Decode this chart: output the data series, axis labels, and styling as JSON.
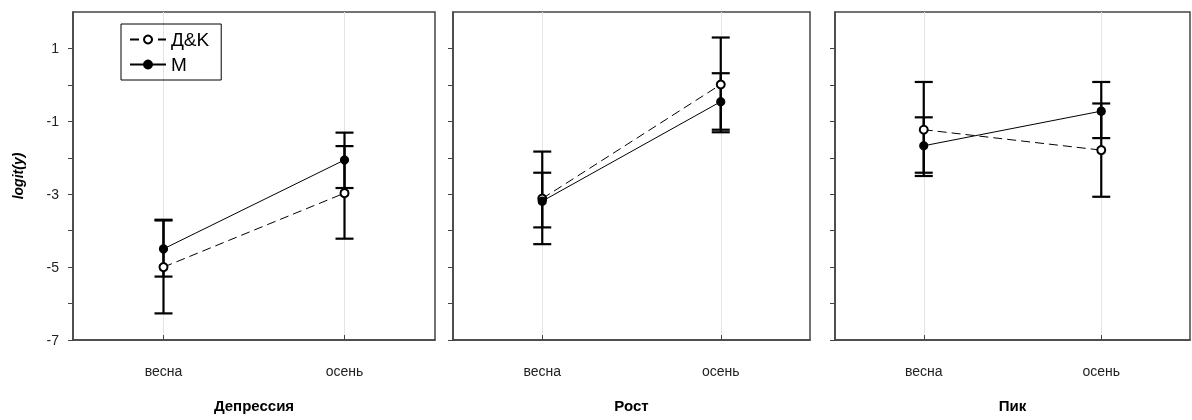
{
  "chart_data": [
    {
      "type": "line",
      "xlabel": "Депрессия",
      "ylabel": "logit(y)",
      "categories": [
        "весна",
        "осень"
      ],
      "ylim": [
        -7,
        2
      ],
      "yticks": [
        -7,
        {
          "value": -6,
          "label": null
        },
        -5,
        {
          "value": -4,
          "label": null
        },
        -3,
        {
          "value": -2,
          "label": null
        },
        -1,
        {
          "value": 0,
          "label": null
        },
        1
      ],
      "grid": "x",
      "legend": "top",
      "marker": "circle",
      "series": [
        {
          "name": "Д&K",
          "color": "#000000",
          "line_style": "dashed",
          "values": [
            -5.0,
            -2.97
          ],
          "errors": [
            [
              -6.27,
              -3.7
            ],
            [
              -4.22,
              -1.68
            ]
          ]
        },
        {
          "name": "M",
          "color": "#000000",
          "line_style": "solid",
          "values": [
            -4.5,
            -2.06
          ],
          "errors": [
            [
              -5.26,
              -3.72
            ],
            [
              -2.83,
              -1.31
            ]
          ]
        }
      ]
    },
    {
      "type": "line",
      "xlabel": "Рост",
      "categories": [
        "весна",
        "осень"
      ],
      "ylim": [
        -7,
        2
      ],
      "yticks": [
        -7,
        {
          "value": -6,
          "label": null
        },
        -5,
        {
          "value": -4,
          "label": null
        },
        -3,
        {
          "value": -2,
          "label": null
        },
        -1,
        {
          "value": 0,
          "label": null
        },
        1
      ],
      "grid": "x",
      "tick_labels": "x",
      "marker": "circle",
      "series": [
        {
          "color": "#000000",
          "line_style": "dashed",
          "values": [
            -3.12,
            0.01
          ],
          "errors": [
            [
              -4.37,
              -1.83
            ],
            [
              -1.3,
              1.3
            ]
          ]
        },
        {
          "color": "#000000",
          "line_style": "solid",
          "values": [
            -3.19,
            -0.46
          ],
          "errors": [
            [
              -3.91,
              -2.41
            ],
            [
              -1.23,
              0.32
            ]
          ]
        }
      ]
    },
    {
      "type": "line",
      "xlabel": "Пик",
      "categories": [
        "весна",
        "осень"
      ],
      "ylim": [
        -7,
        2
      ],
      "yticks": [
        -7,
        {
          "value": -6,
          "label": null
        },
        -5,
        {
          "value": -4,
          "label": null
        },
        -3,
        {
          "value": -2,
          "label": null
        },
        -1,
        {
          "value": 0,
          "label": null
        },
        1
      ],
      "grid": "x",
      "tick_labels": "x",
      "marker": "circle",
      "series": [
        {
          "color": "#000000",
          "line_style": "dashed",
          "values": [
            -1.23,
            -1.79
          ],
          "errors": [
            [
              -2.5,
              0.08
            ],
            [
              -3.07,
              -0.51
            ]
          ]
        },
        {
          "color": "#000000",
          "line_style": "solid",
          "values": [
            -1.67,
            -0.72
          ],
          "errors": [
            [
              -2.41,
              -0.89
            ],
            [
              -1.46,
              0.08
            ]
          ]
        }
      ]
    }
  ]
}
